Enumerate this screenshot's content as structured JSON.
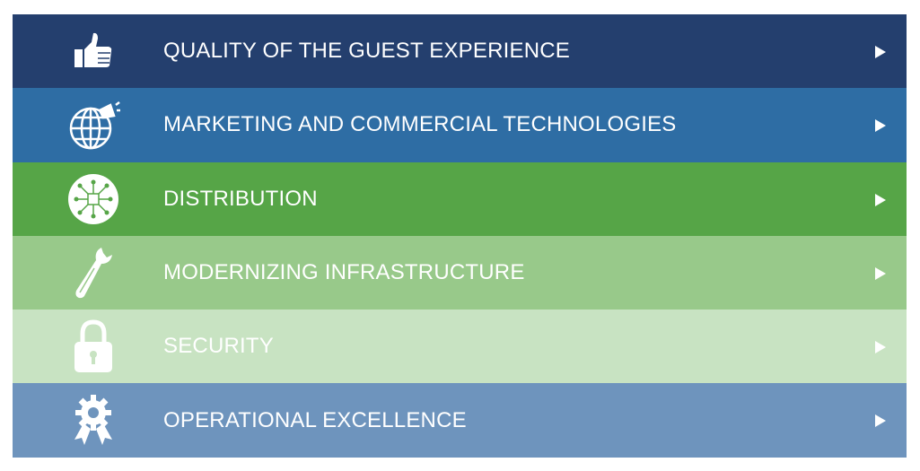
{
  "items": [
    {
      "label": "QUALITY OF THE GUEST EXPERIENCE"
    },
    {
      "label": "MARKETING AND COMMERCIAL TECHNOLOGIES"
    },
    {
      "label": "DISTRIBUTION"
    },
    {
      "label": "MODERNIZING INFRASTRUCTURE"
    },
    {
      "label": "SECURITY"
    },
    {
      "label": "OPERATIONAL EXCELLENCE"
    }
  ]
}
